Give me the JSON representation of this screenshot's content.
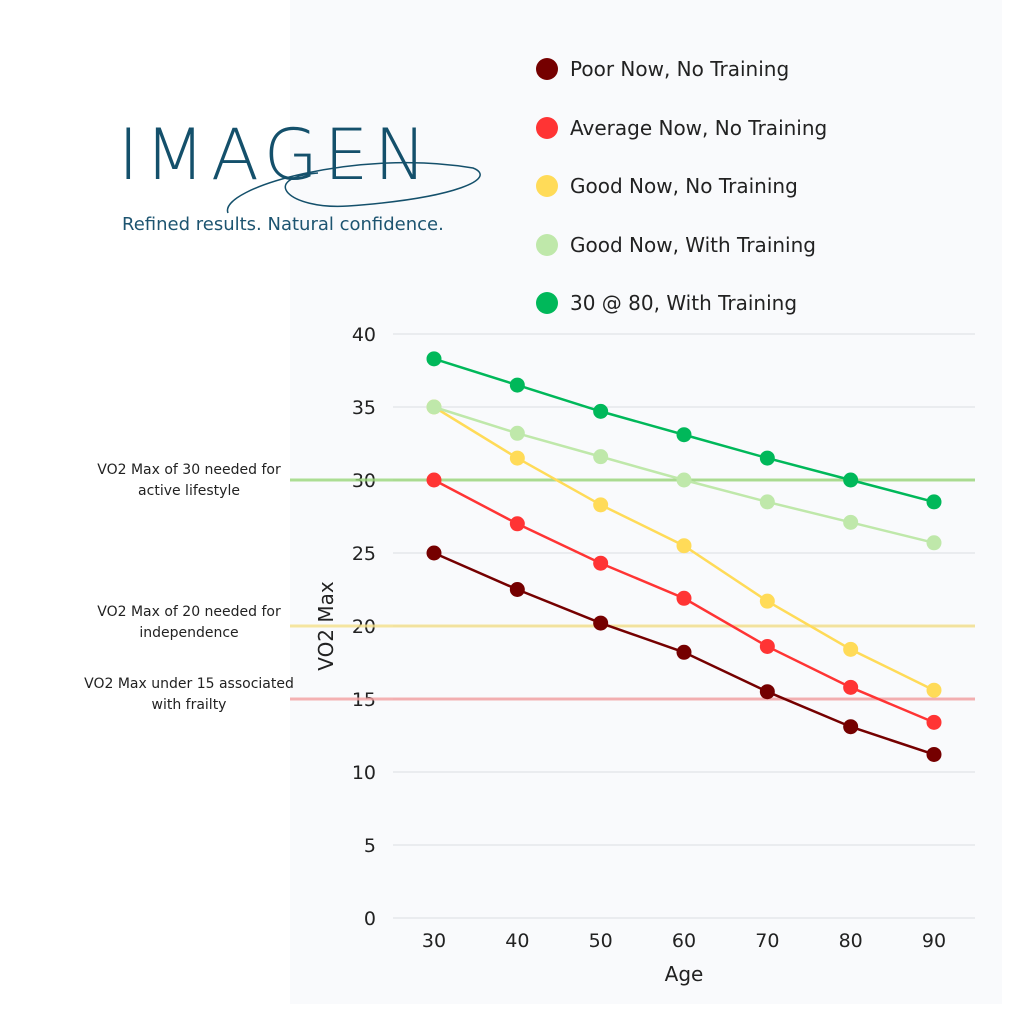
{
  "logo": {
    "name": "IMAGEN",
    "tagline": "Refined results. Natural confidence."
  },
  "annotations": [
    {
      "text": "VO2 Max of 30 needed for active lifestyle",
      "value": 30,
      "color": "#9ad67a"
    },
    {
      "text": "VO2 Max of 20 needed for independence",
      "value": 20,
      "color": "#f5e08a"
    },
    {
      "text": "VO2 Max under 15 associated with frailty",
      "value": 15,
      "color": "#f4a0a0"
    }
  ],
  "chart_data": {
    "type": "line",
    "xlabel": "Age",
    "ylabel": "VO2 Max",
    "x": [
      30,
      40,
      50,
      60,
      70,
      80,
      90
    ],
    "ylim": [
      0,
      40
    ],
    "yticks": [
      0,
      5,
      10,
      15,
      20,
      25,
      30,
      35,
      40
    ],
    "grid": true,
    "legend_placement": "top",
    "series": [
      {
        "name": "Poor Now, No Training",
        "color": "#750000",
        "values": [
          25,
          22.5,
          20.2,
          18.2,
          15.5,
          13.1,
          11.2
        ]
      },
      {
        "name": "Average Now, No Training",
        "color": "#ff3434",
        "values": [
          30,
          27,
          24.3,
          21.9,
          18.6,
          15.8,
          13.4
        ]
      },
      {
        "name": "Good Now, No Training",
        "color": "#ffdb58",
        "values": [
          35,
          31.5,
          28.3,
          25.5,
          21.7,
          18.4,
          15.6
        ]
      },
      {
        "name": "Good Now, With Training",
        "color": "#bfe8aa",
        "values": [
          35,
          33.2,
          31.6,
          30,
          28.5,
          27.1,
          25.7
        ]
      },
      {
        "name": "30 @ 80, With Training",
        "color": "#00b85a",
        "values": [
          38.3,
          36.5,
          34.7,
          33.1,
          31.5,
          30,
          28.5
        ]
      }
    ]
  }
}
